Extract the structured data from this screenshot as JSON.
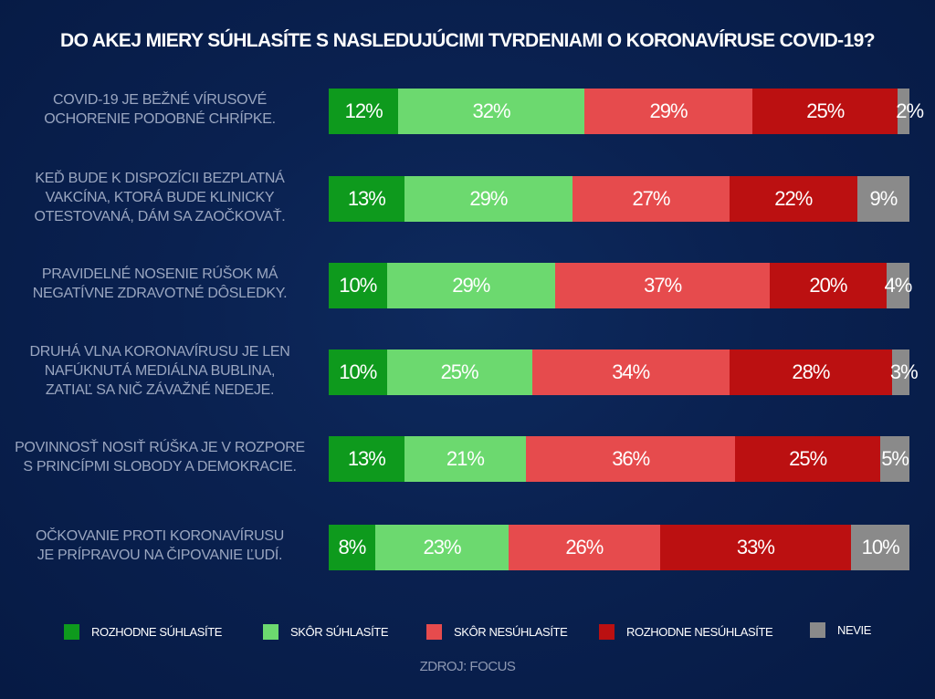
{
  "chart_data": {
    "type": "bar",
    "orientation": "horizontal",
    "stacked": true,
    "title": "DO AKEJ MIERY SÚHLASÍTE S NASLEDUJÚCIMI TVRDENIAMI O KORONAVÍRUSE COVID-19?",
    "xlabel": "",
    "ylabel": "",
    "xlim": [
      0,
      100
    ],
    "grid": false,
    "legend_position": "bottom",
    "categories": [
      [
        "COVID-19 JE BEŽNÉ VÍRUSOVÉ",
        "OCHORENIE PODOBNÉ CHRÍPKE."
      ],
      [
        "KEĎ BUDE K DISPOZÍCII BEZPLATNÁ",
        "VAKCÍNA, KTORÁ BUDE KLINICKY",
        "OTESTOVANÁ, DÁM SA ZAOČKOVAŤ."
      ],
      [
        "PRAVIDELNÉ NOSENIE RÚŠOK MÁ",
        "NEGATÍVNE ZDRAVOTNÉ DÔSLEDKY."
      ],
      [
        "DRUHÁ VLNA KORONAVÍRUSU JE LEN",
        "NAFÚKNUTÁ MEDIÁLNA BUBLINA,",
        "ZATIAĽ SA NIČ ZÁVAŽNÉ NEDEJE."
      ],
      [
        "POVINNOSŤ NOSIŤ RÚŠKA JE V ROZPORE",
        "S PRINCÍPMI SLOBODY A DEMOKRACIE."
      ],
      [
        "OČKOVANIE PROTI KORONAVÍRUSU",
        "JE PRÍPRAVOU NA ČIPOVANIE ĽUDÍ."
      ]
    ],
    "series": [
      {
        "name": "ROZHODNE SÚHLASÍTE",
        "color": "#0e9a1d",
        "values": [
          12,
          13,
          10,
          10,
          13,
          8
        ]
      },
      {
        "name": "SKÔR SÚHLASÍTE",
        "color": "#6cd96f",
        "values": [
          32,
          29,
          29,
          25,
          21,
          23
        ]
      },
      {
        "name": "SKÔR NESÚHLASÍTE",
        "color": "#e64b4d",
        "values": [
          29,
          27,
          37,
          34,
          36,
          26
        ]
      },
      {
        "name": "ROZHODNE NESÚHLASÍTE",
        "color": "#bb1011",
        "values": [
          25,
          22,
          20,
          28,
          25,
          33
        ]
      },
      {
        "name": "NEVIE",
        "color": "#8a8a8a",
        "values": [
          2,
          9,
          4,
          3,
          5,
          10
        ]
      }
    ],
    "value_suffix": "%",
    "source": "ZDROJ: FOCUS"
  }
}
